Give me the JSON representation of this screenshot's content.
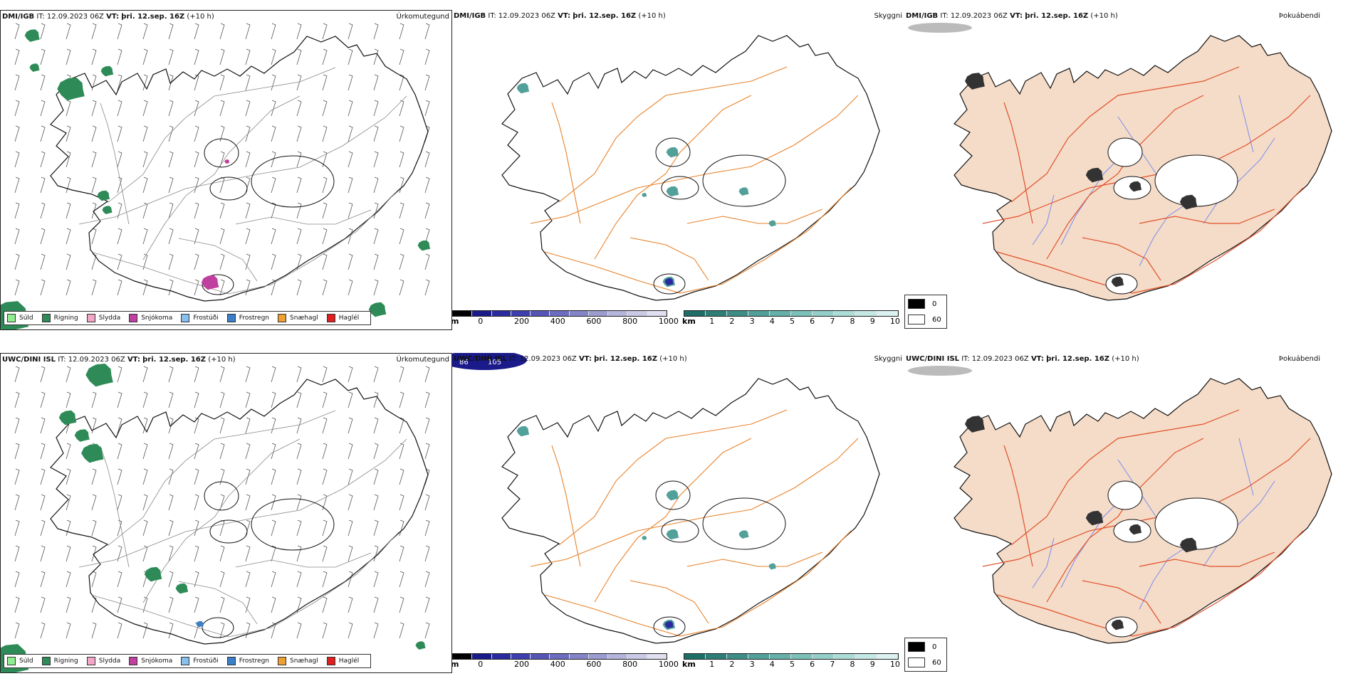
{
  "rows": [
    {
      "model": "DMI/IGB",
      "it_label": "IT:",
      "it_value": "12.09.2023 06Z",
      "vt_label": "VT:",
      "vt_value": "þri. 12.sep. 16Z",
      "lead": "(+10 h)",
      "precip_title": "Úrkomutegund",
      "cloud_title": "Skyggni",
      "fog_title": "Þokuábendi",
      "cloud_labels": []
    },
    {
      "model": "UWC/DINI ISL",
      "it_label": "IT:",
      "it_value": "12.09.2023 06Z",
      "vt_label": "VT:",
      "vt_value": "þri. 12.sep. 16Z",
      "lead": "(+10 h)",
      "precip_title": "Úrkomutegund",
      "cloud_title": "Skyggni",
      "fog_title": "Þokuábendi",
      "cloud_labels": [
        "86",
        "105"
      ]
    }
  ],
  "precip_legend": [
    {
      "label": "Súld",
      "color": "#90ee90"
    },
    {
      "label": "Rigning",
      "color": "#2e8b57"
    },
    {
      "label": "Slydda",
      "color": "#f4a6c8"
    },
    {
      "label": "Snjókoma",
      "color": "#c040a0"
    },
    {
      "label": "Frostúði",
      "color": "#87bfee"
    },
    {
      "label": "Frostregn",
      "color": "#3a7fc8"
    },
    {
      "label": "Snæhagl",
      "color": "#f0a030"
    },
    {
      "label": "Haglél",
      "color": "#e02020"
    }
  ],
  "cloud_base_scale": {
    "unit": "m",
    "ticks": [
      "0",
      "200",
      "400",
      "600",
      "800",
      "1000"
    ],
    "colors": [
      "#000000",
      "#1a1a8a",
      "#2a2aa0",
      "#3e3eb0",
      "#5555b8",
      "#6c6cc0",
      "#8484c8",
      "#9c9cd0",
      "#b4b4dc",
      "#cacae6",
      "#e0e0f0"
    ]
  },
  "visibility_scale": {
    "unit": "km",
    "ticks": [
      "1",
      "2",
      "3",
      "4",
      "5",
      "6",
      "7",
      "8",
      "9",
      "10"
    ],
    "colors": [
      "#1e6e68",
      "#2e7e78",
      "#3e8e88",
      "#52a09a",
      "#66b0aa",
      "#7cc0ba",
      "#94cec8",
      "#acdcd6",
      "#c4e8e4",
      "#dcf2f0"
    ]
  },
  "fog_key": [
    {
      "label": "0",
      "color": "#000000"
    },
    {
      "label": "60",
      "color": "#ffffff"
    }
  ],
  "colors": {
    "land_fill": "#f5dcc8",
    "roads_orange": "#e8822a",
    "roads_red": "#e0502a",
    "rivers": "#7a8cf0",
    "coast": "#111111"
  }
}
